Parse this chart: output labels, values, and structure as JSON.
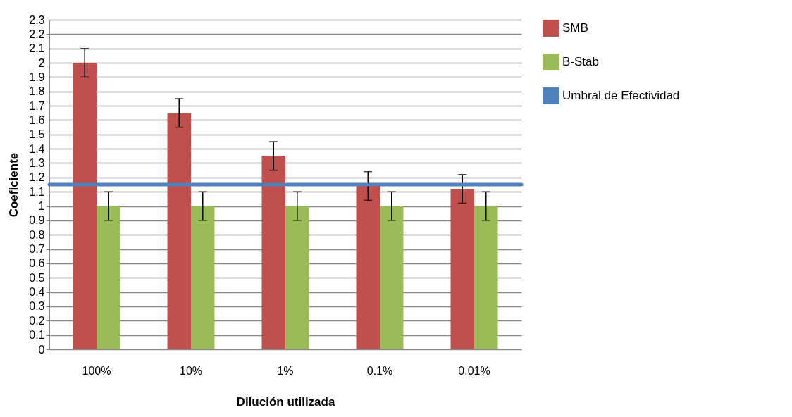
{
  "chart_data": {
    "type": "bar",
    "xlabel": "Dilución utilizada",
    "ylabel": "Coeficiente",
    "categories": [
      "100%",
      "10%",
      "1%",
      "0.1%",
      "0.01%"
    ],
    "series": [
      {
        "name": "SMB",
        "color": "#c0504d",
        "values": [
          2.0,
          1.65,
          1.35,
          1.14,
          1.12
        ],
        "errors": [
          0.1,
          0.1,
          0.1,
          0.1,
          0.1
        ]
      },
      {
        "name": "B-Stab",
        "color": "#9bbb59",
        "values": [
          1.0,
          1.0,
          1.0,
          1.0,
          1.0
        ],
        "errors": [
          0.1,
          0.1,
          0.1,
          0.1,
          0.1
        ]
      }
    ],
    "ref_lines": [
      {
        "axis": "y",
        "value": 1.15,
        "label": "Umbral de Efectividad",
        "color": "#4f81bd"
      }
    ],
    "ylim": [
      0,
      2.3
    ],
    "yticks": [
      0,
      0.1,
      0.2,
      0.3,
      0.4,
      0.5,
      0.6,
      0.7,
      0.8,
      0.9,
      1,
      1.1,
      1.2,
      1.3,
      1.4,
      1.5,
      1.6,
      1.7,
      1.8,
      1.9,
      2,
      2.1,
      2.2,
      2.3
    ],
    "grid": "y",
    "legend": "right"
  }
}
